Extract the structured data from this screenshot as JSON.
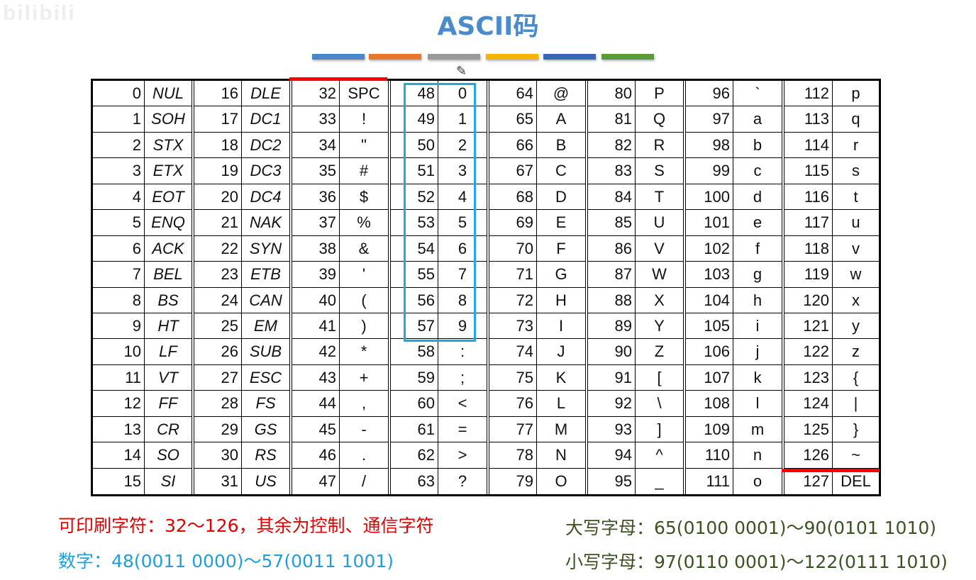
{
  "watermark": "bilibili",
  "title": "ASCII码",
  "color_bars": [
    "#4a86c8",
    "#e8772e",
    "#9a9a9a",
    "#f5b400",
    "#3a66b8",
    "#5a9a3a"
  ],
  "groups": [
    {
      "control": true,
      "rows": [
        [
          "0",
          "NUL"
        ],
        [
          "1",
          "SOH"
        ],
        [
          "2",
          "STX"
        ],
        [
          "3",
          "ETX"
        ],
        [
          "4",
          "EOT"
        ],
        [
          "5",
          "ENQ"
        ],
        [
          "6",
          "ACK"
        ],
        [
          "7",
          "BEL"
        ],
        [
          "8",
          "BS"
        ],
        [
          "9",
          "HT"
        ],
        [
          "10",
          "LF"
        ],
        [
          "11",
          "VT"
        ],
        [
          "12",
          "FF"
        ],
        [
          "13",
          "CR"
        ],
        [
          "14",
          "SO"
        ],
        [
          "15",
          "SI"
        ]
      ]
    },
    {
      "control": true,
      "rows": [
        [
          "16",
          "DLE"
        ],
        [
          "17",
          "DC1"
        ],
        [
          "18",
          "DC2"
        ],
        [
          "19",
          "DC3"
        ],
        [
          "20",
          "DC4"
        ],
        [
          "21",
          "NAK"
        ],
        [
          "22",
          "SYN"
        ],
        [
          "23",
          "ETB"
        ],
        [
          "24",
          "CAN"
        ],
        [
          "25",
          "EM"
        ],
        [
          "26",
          "SUB"
        ],
        [
          "27",
          "ESC"
        ],
        [
          "28",
          "FS"
        ],
        [
          "29",
          "GS"
        ],
        [
          "30",
          "RS"
        ],
        [
          "31",
          "US"
        ]
      ]
    },
    {
      "control": false,
      "rows": [
        [
          "32",
          "SPC"
        ],
        [
          "33",
          "!"
        ],
        [
          "34",
          "\""
        ],
        [
          "35",
          "#"
        ],
        [
          "36",
          "$"
        ],
        [
          "37",
          "%"
        ],
        [
          "38",
          "&"
        ],
        [
          "39",
          "'"
        ],
        [
          "40",
          "("
        ],
        [
          "41",
          ")"
        ],
        [
          "42",
          "*"
        ],
        [
          "43",
          "+"
        ],
        [
          "44",
          ","
        ],
        [
          "45",
          "-"
        ],
        [
          "46",
          "."
        ],
        [
          "47",
          "/"
        ]
      ]
    },
    {
      "control": false,
      "rows": [
        [
          "48",
          "0"
        ],
        [
          "49",
          "1"
        ],
        [
          "50",
          "2"
        ],
        [
          "51",
          "3"
        ],
        [
          "52",
          "4"
        ],
        [
          "53",
          "5"
        ],
        [
          "54",
          "6"
        ],
        [
          "55",
          "7"
        ],
        [
          "56",
          "8"
        ],
        [
          "57",
          "9"
        ],
        [
          "58",
          ":"
        ],
        [
          "59",
          ";"
        ],
        [
          "60",
          "<"
        ],
        [
          "61",
          "="
        ],
        [
          "62",
          ">"
        ],
        [
          "63",
          "?"
        ]
      ]
    },
    {
      "control": false,
      "rows": [
        [
          "64",
          "@"
        ],
        [
          "65",
          "A"
        ],
        [
          "66",
          "B"
        ],
        [
          "67",
          "C"
        ],
        [
          "68",
          "D"
        ],
        [
          "69",
          "E"
        ],
        [
          "70",
          "F"
        ],
        [
          "71",
          "G"
        ],
        [
          "72",
          "H"
        ],
        [
          "73",
          "I"
        ],
        [
          "74",
          "J"
        ],
        [
          "75",
          "K"
        ],
        [
          "76",
          "L"
        ],
        [
          "77",
          "M"
        ],
        [
          "78",
          "N"
        ],
        [
          "79",
          "O"
        ]
      ]
    },
    {
      "control": false,
      "rows": [
        [
          "80",
          "P"
        ],
        [
          "81",
          "Q"
        ],
        [
          "82",
          "R"
        ],
        [
          "83",
          "S"
        ],
        [
          "84",
          "T"
        ],
        [
          "85",
          "U"
        ],
        [
          "86",
          "V"
        ],
        [
          "87",
          "W"
        ],
        [
          "88",
          "X"
        ],
        [
          "89",
          "Y"
        ],
        [
          "90",
          "Z"
        ],
        [
          "91",
          "["
        ],
        [
          "92",
          "\\"
        ],
        [
          "93",
          "]"
        ],
        [
          "94",
          "^"
        ],
        [
          "95",
          "_"
        ]
      ]
    },
    {
      "control": false,
      "rows": [
        [
          "96",
          "`"
        ],
        [
          "97",
          "a"
        ],
        [
          "98",
          "b"
        ],
        [
          "99",
          "c"
        ],
        [
          "100",
          "d"
        ],
        [
          "101",
          "e"
        ],
        [
          "102",
          "f"
        ],
        [
          "103",
          "g"
        ],
        [
          "104",
          "h"
        ],
        [
          "105",
          "i"
        ],
        [
          "106",
          "j"
        ],
        [
          "107",
          "k"
        ],
        [
          "108",
          "l"
        ],
        [
          "109",
          "m"
        ],
        [
          "110",
          "n"
        ],
        [
          "111",
          "o"
        ]
      ]
    },
    {
      "control": false,
      "rows": [
        [
          "112",
          "p"
        ],
        [
          "113",
          "q"
        ],
        [
          "114",
          "r"
        ],
        [
          "115",
          "s"
        ],
        [
          "116",
          "t"
        ],
        [
          "117",
          "u"
        ],
        [
          "118",
          "v"
        ],
        [
          "119",
          "w"
        ],
        [
          "120",
          "x"
        ],
        [
          "121",
          "y"
        ],
        [
          "122",
          "z"
        ],
        [
          "123",
          "{"
        ],
        [
          "124",
          "|"
        ],
        [
          "125",
          "}"
        ],
        [
          "126",
          "~"
        ],
        [
          "127",
          "DEL"
        ]
      ]
    }
  ],
  "notes": {
    "printable": "可印刷字符：32～126，其余为控制、通信字符",
    "digits": "数字：48(0011 0000)～57(0011 1001)",
    "uppercase": "大写字母：65(0100 0001)～90(0101 1010)",
    "lowercase": "小写字母：97(0110 0001)～122(0111 1010)"
  },
  "colors": {
    "title": "#4a8ccb",
    "printable": "#e00000",
    "digits": "#1ea0dc",
    "letters": "#3b5323",
    "highlight_red": "#ff0000",
    "highlight_blue": "#22a8e0"
  }
}
